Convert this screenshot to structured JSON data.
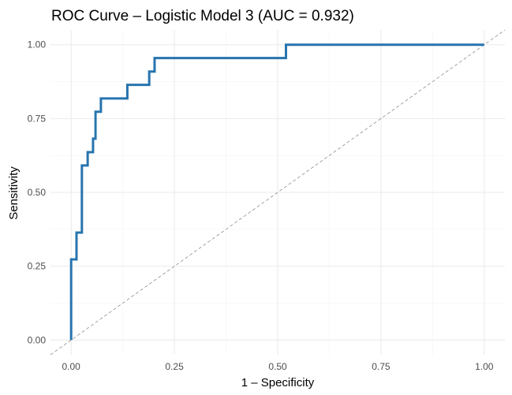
{
  "chart_data": {
    "type": "line",
    "title": "ROC Curve – Logistic Model 3 (AUC = 0.932)",
    "xlabel": "1 – Specificity",
    "ylabel": "Sensitivity",
    "xlim": [
      -0.05,
      1.05
    ],
    "ylim": [
      -0.05,
      1.05
    ],
    "x_ticks": [
      0,
      0.25,
      0.5,
      0.75,
      1
    ],
    "x_tick_labels": [
      "0.00",
      "0.25",
      "0.50",
      "0.75",
      "1.00"
    ],
    "y_ticks": [
      0,
      0.25,
      0.5,
      0.75,
      1
    ],
    "y_tick_labels": [
      "0.00",
      "0.25",
      "0.50",
      "0.75",
      "1.00"
    ],
    "grid": true,
    "series": [
      {
        "color": "#2774ae",
        "style": "step",
        "x": [
          0.0,
          0.0,
          0.013,
          0.013,
          0.026,
          0.026,
          0.04,
          0.04,
          0.053,
          0.053,
          0.059,
          0.059,
          0.072,
          0.072,
          0.136,
          0.136,
          0.189,
          0.189,
          0.202,
          0.202,
          0.52,
          0.52,
          1.0
        ],
        "y": [
          0.0,
          0.273,
          0.273,
          0.364,
          0.364,
          0.591,
          0.591,
          0.636,
          0.636,
          0.682,
          0.682,
          0.773,
          0.773,
          0.818,
          0.818,
          0.864,
          0.864,
          0.909,
          0.909,
          0.955,
          0.955,
          1.0,
          1.0
        ]
      },
      {
        "color": "#8c8c8c",
        "style": "dashed",
        "x": [
          -0.05,
          1.05
        ],
        "y": [
          -0.05,
          1.05
        ]
      }
    ]
  }
}
